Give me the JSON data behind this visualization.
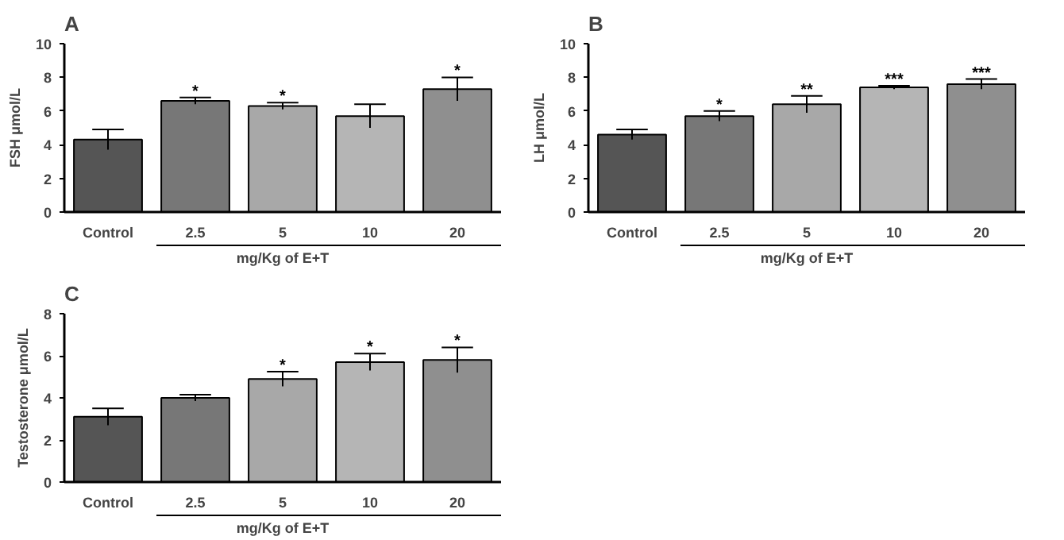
{
  "chart_data": [
    {
      "type": "bar",
      "title": "A",
      "ylabel": "FSH μmol/L",
      "xlabel": "mg/Kg of E+T",
      "categories": [
        "Control",
        "2.5",
        "5",
        "10",
        "20"
      ],
      "values": [
        4.3,
        6.6,
        6.3,
        5.7,
        7.3
      ],
      "errors": [
        0.6,
        0.2,
        0.2,
        0.7,
        0.7
      ],
      "colors": [
        "#555555",
        "#777777",
        "#a8a8a8",
        "#b5b5b5",
        "#8f8f8f"
      ],
      "ylim": [
        0,
        10
      ],
      "yticks": [
        0,
        2,
        4,
        6,
        8,
        10
      ],
      "grid": false,
      "annotations": [
        {
          "text": "*",
          "x": "2.5",
          "y": 6.8
        },
        {
          "text": "*",
          "x": "5",
          "y": 6.5
        },
        {
          "text": "*",
          "x": "20",
          "y": 8.0
        }
      ]
    },
    {
      "type": "bar",
      "title": "B",
      "ylabel": "LH μmol/L",
      "xlabel": "mg/Kg of E+T",
      "categories": [
        "Control",
        "2.5",
        "5",
        "10",
        "20"
      ],
      "values": [
        4.6,
        5.7,
        6.4,
        7.4,
        7.6
      ],
      "errors": [
        0.3,
        0.3,
        0.5,
        0.1,
        0.3
      ],
      "colors": [
        "#555555",
        "#777777",
        "#a8a8a8",
        "#b5b5b5",
        "#8f8f8f"
      ],
      "ylim": [
        0,
        10
      ],
      "yticks": [
        0,
        2,
        4,
        6,
        8,
        10
      ],
      "grid": false,
      "annotations": [
        {
          "text": "*",
          "x": "2.5",
          "y": 6.0
        },
        {
          "text": "**",
          "x": "5",
          "y": 6.9
        },
        {
          "text": "***",
          "x": "10",
          "y": 7.5
        },
        {
          "text": "***",
          "x": "20",
          "y": 7.9
        }
      ]
    },
    {
      "type": "bar",
      "title": "C",
      "ylabel": "Testosterone μmol/L",
      "xlabel": "mg/Kg of E+T",
      "categories": [
        "Control",
        "2.5",
        "5",
        "10",
        "20"
      ],
      "values": [
        3.1,
        4.0,
        4.9,
        5.7,
        5.8
      ],
      "errors": [
        0.4,
        0.15,
        0.35,
        0.4,
        0.6
      ],
      "colors": [
        "#555555",
        "#777777",
        "#a8a8a8",
        "#b5b5b5",
        "#8f8f8f"
      ],
      "ylim": [
        0,
        8
      ],
      "yticks": [
        0,
        2,
        4,
        6,
        8
      ],
      "grid": false,
      "annotations": [
        {
          "text": "*",
          "x": "5",
          "y": 5.25
        },
        {
          "text": "*",
          "x": "10",
          "y": 6.1
        },
        {
          "text": "*",
          "x": "20",
          "y": 6.4
        }
      ]
    }
  ]
}
